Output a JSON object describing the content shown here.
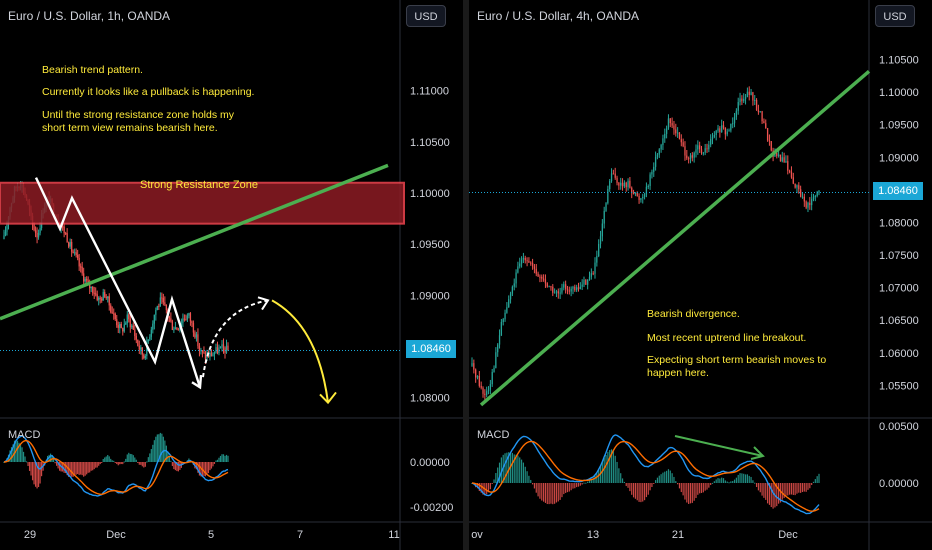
{
  "colors": {
    "up": "#26a69a",
    "down": "#ef5350",
    "trendline": "#4caf50",
    "price_line": "#1ba7d6",
    "zone_fill": "#8c1c24",
    "zone_border": "#f0454f",
    "macd_line": "#2196f3",
    "signal_line": "#ff6d00",
    "annotation": "#ffeb3b",
    "arrows": "#ffffff"
  },
  "charts": [
    {
      "title": "Euro / U.S. Dollar, 1h, OANDA",
      "currency_button": "USD",
      "price_ticks": [
        "1.11000",
        "1.10500",
        "1.10000",
        "1.09500",
        "1.09000",
        "1.08000"
      ],
      "macd_ticks": [
        "0.00000",
        "-0.00200"
      ],
      "x_ticks": [
        "29",
        "Dec",
        "5",
        "7",
        "11"
      ],
      "current_price": "1.08460",
      "macd_label": "MACD",
      "notes": [
        "Bearish trend pattern.",
        "Currently it looks like a pullback is happening.",
        "Until the strong resistance zone holds my",
        "short term view remains bearish here."
      ],
      "zone_label": "Strong Resistance Zone",
      "icons": [
        "zigzag-arrow-icon",
        "projection-arrow-icon"
      ]
    },
    {
      "title": "Euro / U.S. Dollar, 4h, OANDA",
      "currency_button": "USD",
      "price_ticks": [
        "1.10500",
        "1.10000",
        "1.09500",
        "1.09000",
        "1.08000",
        "1.07500",
        "1.07000",
        "1.06500",
        "1.06000",
        "1.05500"
      ],
      "macd_ticks": [
        "0.00500",
        "0.00000"
      ],
      "x_ticks": [
        "ov",
        "13",
        "21",
        "Dec"
      ],
      "current_price": "1.08460",
      "macd_label": "MACD",
      "notes": [
        "Bearish divergence.",
        "Most recent uptrend line breakout.",
        "Expecting short term bearish moves to",
        "happen here."
      ],
      "icons": [
        "divergence-arrow-icon"
      ]
    }
  ],
  "chart_data": [
    {
      "type": "candlestick",
      "title": "Euro / U.S. Dollar, 1h, OANDA",
      "timeframe": "1h",
      "ylim": [
        1.078,
        1.113
      ],
      "last": 1.0846,
      "path": [
        1.0955,
        1.0985,
        1.1005,
        1.101,
        1.0995,
        1.097,
        1.0958,
        1.0985,
        1.0995,
        1.098,
        1.097,
        1.096,
        1.0945,
        1.0935,
        1.092,
        1.091,
        1.0905,
        1.0895,
        1.0902,
        1.0888,
        1.0875,
        1.0865,
        1.0878,
        1.0868,
        1.085,
        1.084,
        1.0862,
        1.0885,
        1.0895,
        1.0885,
        1.087,
        1.0868,
        1.0878,
        1.088,
        1.0865,
        1.0845,
        1.084,
        1.0842,
        1.0846,
        1.0848,
        1.0846
      ]
    },
    {
      "type": "candlestick",
      "title": "Euro / U.S. Dollar, 4h, OANDA",
      "timeframe": "4h",
      "ylim": [
        1.05,
        1.108
      ],
      "last": 1.0846,
      "path": [
        1.058,
        1.056,
        1.0535,
        1.055,
        1.059,
        1.064,
        1.067,
        1.07,
        1.073,
        1.075,
        1.074,
        1.072,
        1.0715,
        1.0705,
        1.0695,
        1.0688,
        1.0702,
        1.0698,
        1.0695,
        1.0705,
        1.0712,
        1.0725,
        1.0765,
        1.082,
        1.0875,
        1.0865,
        1.0855,
        1.086,
        1.0845,
        1.0835,
        1.085,
        1.0875,
        1.0905,
        1.093,
        1.0955,
        1.0945,
        1.0925,
        1.0905,
        1.0895,
        1.0915,
        1.0905,
        1.092,
        1.0935,
        1.0945,
        1.0935,
        1.0955,
        1.0985,
        1.0995,
        1.1,
        1.098,
        1.0965,
        1.0935,
        1.0905,
        1.09,
        1.0895,
        1.0875,
        1.0855,
        1.084,
        1.0825,
        1.0835,
        1.0846
      ]
    }
  ]
}
